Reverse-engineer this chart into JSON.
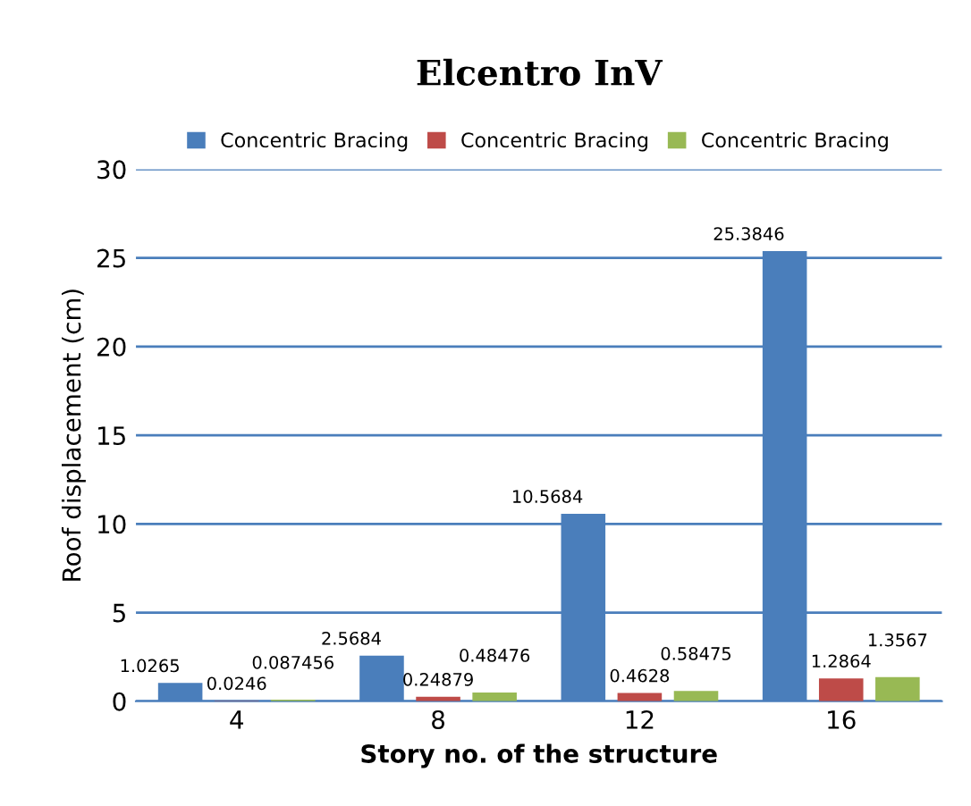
{
  "chart_data": {
    "type": "bar",
    "title": "Elcentro InV",
    "xlabel": "Story no. of the structure",
    "ylabel": "Roof displacement (cm)",
    "categories": [
      "4",
      "8",
      "12",
      "16"
    ],
    "series": [
      {
        "name": "Concentric Bracing",
        "color": "#4a7ebb",
        "values": [
          1.0265,
          2.5684,
          10.5684,
          25.3846
        ]
      },
      {
        "name": "Concentric Bracing",
        "color": "#be4b48",
        "values": [
          0.0246,
          0.24879,
          0.4628,
          1.2864
        ]
      },
      {
        "name": "Concentric Bracing",
        "color": "#98b954",
        "values": [
          0.087456,
          0.48476,
          0.58475,
          1.3567
        ]
      }
    ],
    "ylim": [
      0,
      30
    ],
    "yticks": [
      0,
      5,
      10,
      15,
      20,
      25,
      30
    ],
    "grid": "y",
    "legend": "top",
    "data_labels": true
  }
}
